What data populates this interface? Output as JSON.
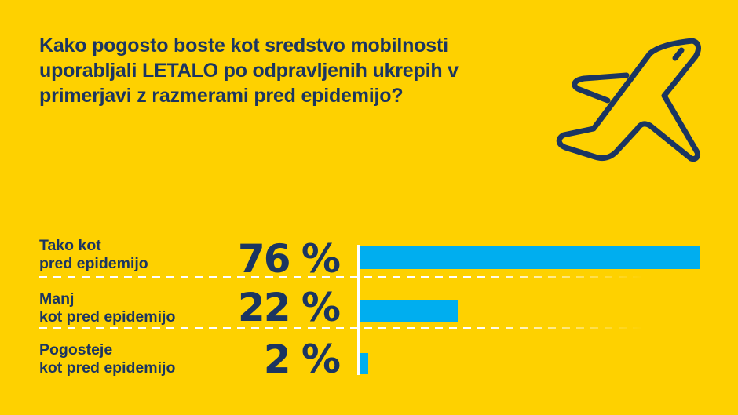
{
  "title": "Kako pogosto boste kot sredstvo mobilnosti uporabljali LETALO po odpravljenih ukrepih v primerjavi z razmerami pred epidemijo?",
  "icon": "airplane-icon",
  "colors": {
    "background": "#FED100",
    "text": "#1B3561",
    "bar": "#00AEEF",
    "axis": "#FFFFFF"
  },
  "rows": [
    {
      "label": "Tako kot\npred epidemijo",
      "value_label": "76 %",
      "value": 76
    },
    {
      "label": "Manj\nkot pred epidemijo",
      "value_label": "22 %",
      "value": 22
    },
    {
      "label": "Pogosteje\nkot pred epidemijo",
      "value_label": "2 %",
      "value": 2
    }
  ],
  "chart_data": {
    "type": "bar",
    "orientation": "horizontal",
    "title": "Kako pogosto boste kot sredstvo mobilnosti uporabljali LETALO po odpravljenih ukrepih v primerjavi z razmerami pred epidemijo?",
    "categories": [
      "Tako kot pred epidemijo",
      "Manj kot pred epidemijo",
      "Pogosteje kot pred epidemijo"
    ],
    "values": [
      76,
      22,
      2
    ],
    "unit": "%",
    "xlabel": "",
    "ylabel": "",
    "xlim": [
      0,
      76
    ],
    "grid": false,
    "legend": null,
    "data_labels": [
      "76 %",
      "22 %",
      "2 %"
    ]
  }
}
